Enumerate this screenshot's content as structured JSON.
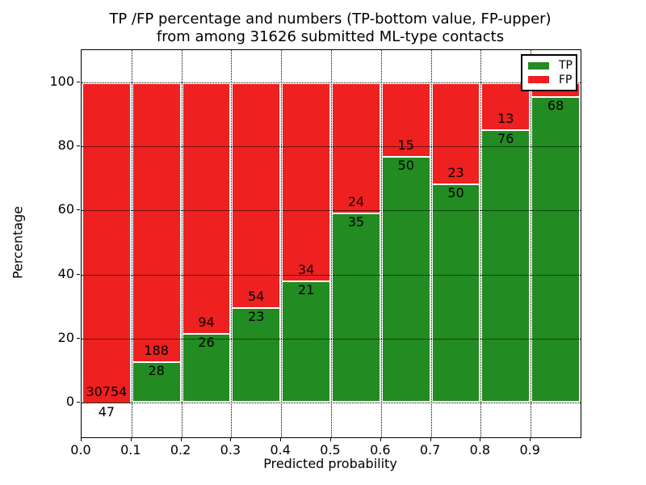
{
  "title": {
    "line1": "TP /FP percentage and numbers (TP-bottom value, FP-upper)",
    "line2": "from among 31626 submitted ML-type contacts"
  },
  "axes": {
    "xlabel": "Predicted probability",
    "ylabel": "Percentage",
    "xtick_labels": [
      "0.0",
      "0.1",
      "0.2",
      "0.3",
      "0.4",
      "0.5",
      "0.6",
      "0.7",
      "0.8",
      "0.9"
    ],
    "ytick_labels": [
      "0",
      "20",
      "40",
      "60",
      "80",
      "100"
    ]
  },
  "legend": {
    "entries": [
      {
        "label": "TP",
        "color": "#228b22"
      },
      {
        "label": "FP",
        "color": "#ee2020"
      }
    ]
  },
  "chart_data": {
    "type": "bar",
    "stacked": true,
    "normalized": "each bar totals 100%",
    "title": "TP /FP percentage and numbers (TP-bottom value, FP-upper) from among 31626 submitted ML-type contacts",
    "xlabel": "Predicted probability",
    "ylabel": "Percentage",
    "bin_starts": [
      0.0,
      0.1,
      0.2,
      0.3,
      0.4,
      0.5,
      0.6,
      0.7,
      0.8,
      0.9
    ],
    "bin_width": 0.1,
    "series": [
      {
        "name": "TP",
        "color": "#228b22",
        "counts": [
          47,
          28,
          26,
          23,
          21,
          35,
          50,
          50,
          76,
          68
        ]
      },
      {
        "name": "FP",
        "color": "#ee2020",
        "counts": [
          30754,
          188,
          94,
          54,
          34,
          24,
          15,
          23,
          13,
          null
        ]
      }
    ],
    "tp_percent": [
      0.15,
      12.96,
      21.67,
      29.87,
      38.18,
      59.32,
      76.92,
      68.49,
      85.39,
      95.8
    ],
    "bar_value_labels": {
      "tp": [
        "47",
        "28",
        "26",
        "23",
        "21",
        "35",
        "50",
        "50",
        "76",
        "68"
      ],
      "fp": [
        "30754",
        "188",
        "94",
        "54",
        "34",
        "24",
        "15",
        "23",
        "13",
        ""
      ]
    },
    "xticks": [
      0.0,
      0.1,
      0.2,
      0.3,
      0.4,
      0.5,
      0.6,
      0.7,
      0.8,
      0.9
    ],
    "yticks": [
      0,
      20,
      40,
      60,
      80,
      100
    ],
    "xlim": [
      0,
      1.0
    ],
    "ylim": [
      -10.8,
      110.1
    ],
    "grid": true,
    "grid_style": "dotted",
    "legend_position": "upper right"
  }
}
